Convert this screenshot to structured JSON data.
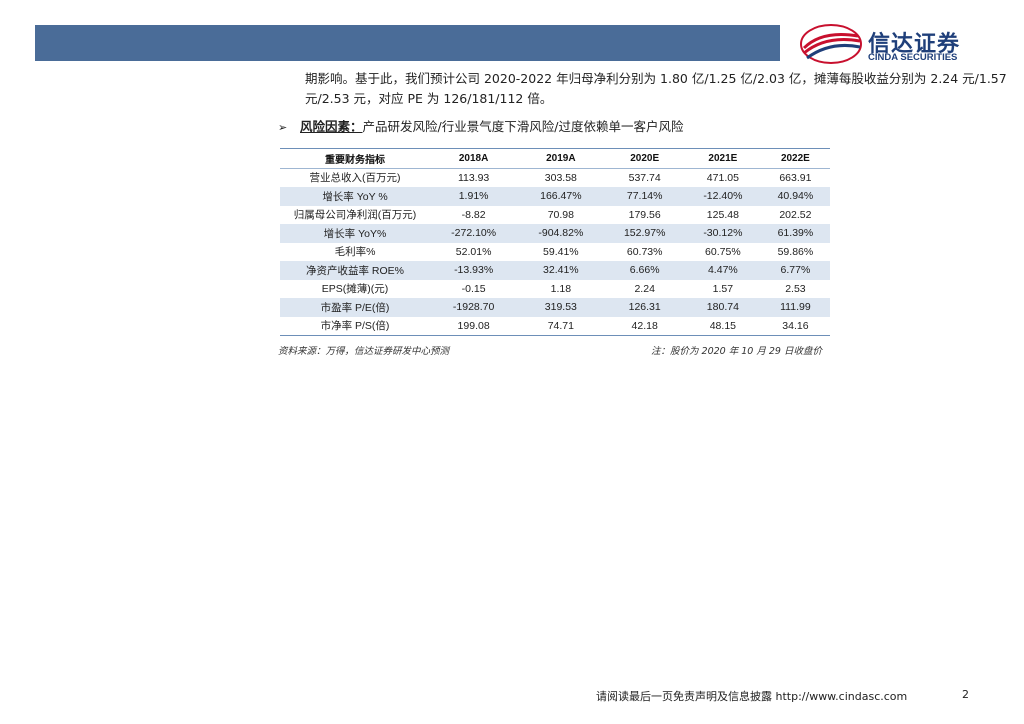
{
  "brand": {
    "name_cn": "信达证券",
    "name_en": "CINDA SECURITIES"
  },
  "body": {
    "line1": "期影响。基于此，我们预计公司 2020-2022 年归母净利分别为 1.80 亿/1.25 亿/2.03 亿，摊薄每股收益分别为 2.24 元/1.57",
    "line2": "元/2.53 元，对应 PE 为 126/181/112 倍。",
    "risk_label": "风险因素：",
    "risk_text": "产品研发风险/行业景气度下滑风险/过度依赖单一客户风险"
  },
  "table": {
    "headers": [
      "重要财务指标",
      "2018A",
      "2019A",
      "2020E",
      "2021E",
      "2022E"
    ],
    "rows": [
      [
        "营业总收入(百万元)",
        "113.93",
        "303.58",
        "537.74",
        "471.05",
        "663.91"
      ],
      [
        "增长率 YoY %",
        "1.91%",
        "166.47%",
        "77.14%",
        "-12.40%",
        "40.94%"
      ],
      [
        "归属母公司净利润(百万元)",
        "-8.82",
        "70.98",
        "179.56",
        "125.48",
        "202.52"
      ],
      [
        "增长率 YoY%",
        "-272.10%",
        "-904.82%",
        "152.97%",
        "-30.12%",
        "61.39%"
      ],
      [
        "毛利率%",
        "52.01%",
        "59.41%",
        "60.73%",
        "60.75%",
        "59.86%"
      ],
      [
        "净资产收益率 ROE%",
        "-13.93%",
        "32.41%",
        "6.66%",
        "4.47%",
        "6.77%"
      ],
      [
        "EPS(摊薄)(元)",
        "-0.15",
        "1.18",
        "2.24",
        "1.57",
        "2.53"
      ],
      [
        "市盈率 P/E(倍)",
        "-1928.70",
        "319.53",
        "126.31",
        "180.74",
        "111.99"
      ],
      [
        "市净率 P/S(倍)",
        "199.08",
        "74.71",
        "42.18",
        "48.15",
        "34.16"
      ]
    ],
    "source": "资料来源：万得，信达证券研发中心预测",
    "note": "注：股价为 2020 年 10 月 29 日收盘价"
  },
  "footer": {
    "disclaimer": "请阅读最后一页免责声明及信息披露 http://www.cindasc.com",
    "page": "2"
  },
  "colors": {
    "header_bar": "#4a6c98",
    "brand_blue": "#1f3f7a",
    "brand_red": "#c8102e",
    "row_shade": "#dde6f1"
  }
}
